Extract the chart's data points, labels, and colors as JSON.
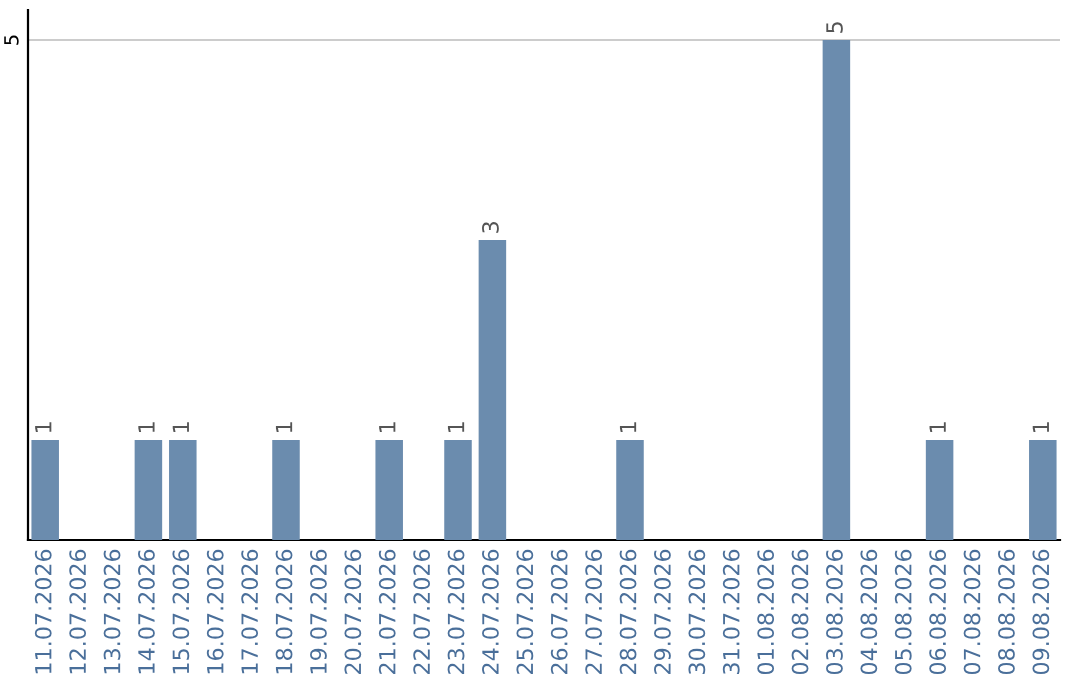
{
  "chart_data": {
    "type": "bar",
    "categories": [
      "11.07.2026",
      "12.07.2026",
      "13.07.2026",
      "14.07.2026",
      "15.07.2026",
      "16.07.2026",
      "17.07.2026",
      "18.07.2026",
      "19.07.2026",
      "20.07.2026",
      "21.07.2026",
      "22.07.2026",
      "23.07.2026",
      "24.07.2026",
      "25.07.2026",
      "26.07.2026",
      "27.07.2026",
      "28.07.2026",
      "29.07.2026",
      "30.07.2026",
      "31.07.2026",
      "01.08.2026",
      "02.08.2026",
      "03.08.2026",
      "04.08.2026",
      "05.08.2026",
      "06.08.2026",
      "07.08.2026",
      "08.08.2026",
      "09.08.2026"
    ],
    "values": [
      1,
      0,
      0,
      1,
      1,
      0,
      0,
      1,
      0,
      0,
      1,
      0,
      1,
      3,
      0,
      0,
      0,
      1,
      0,
      0,
      0,
      0,
      0,
      5,
      0,
      0,
      1,
      0,
      0,
      1
    ],
    "value_labels": [
      "1",
      null,
      null,
      "1",
      "1",
      null,
      null,
      "1",
      null,
      null,
      "1",
      null,
      "1",
      "3",
      null,
      null,
      null,
      "1",
      null,
      null,
      null,
      null,
      null,
      "5",
      null,
      null,
      "1",
      null,
      null,
      "1"
    ],
    "color": "#6b8cae",
    "ylim": [
      0,
      5.3
    ],
    "yticks": [
      5
    ],
    "grid": "y"
  }
}
